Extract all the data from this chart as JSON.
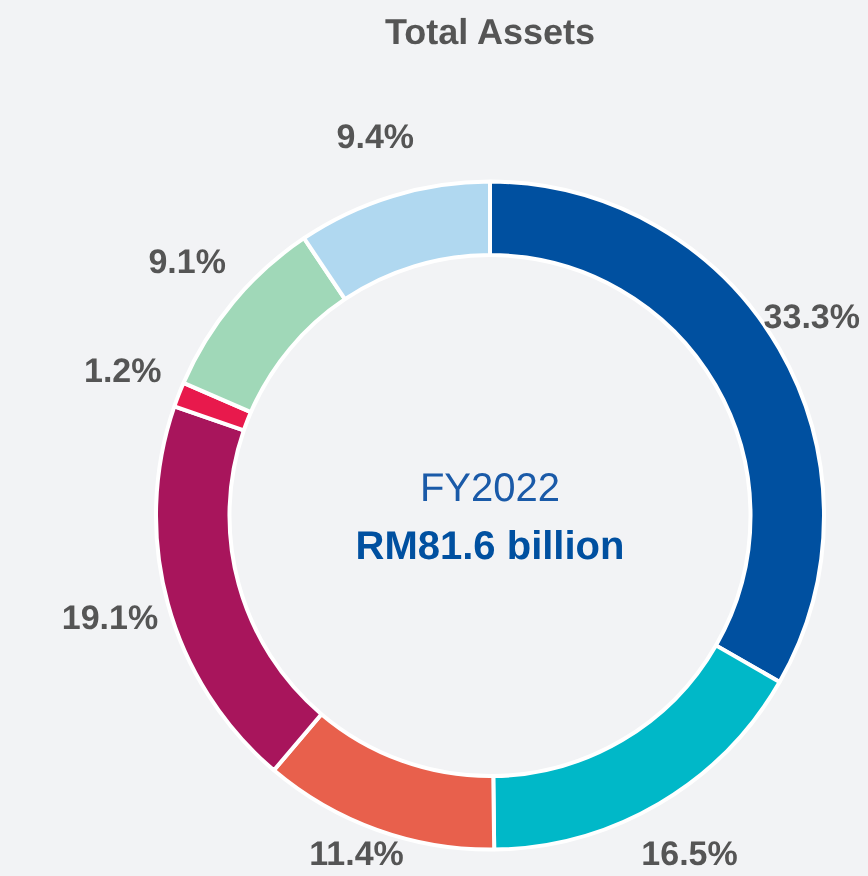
{
  "chart_data": {
    "type": "donut",
    "title": "Total Assets",
    "categories": [
      null,
      null,
      null,
      null,
      null,
      null,
      null
    ],
    "values": [
      33.3,
      16.5,
      11.4,
      19.1,
      1.2,
      9.1,
      9.4
    ],
    "value_labels": [
      "33.3%",
      "16.5%",
      "11.4%",
      "19.1%",
      "1.2%",
      "9.1%",
      "9.4%"
    ],
    "colors": [
      "#0050a0",
      "#00b8c8",
      "#e8604c",
      "#a8155c",
      "#e8194c",
      "#a0d8b8",
      "#b0d8f0"
    ],
    "annotations": [
      "FY2022",
      "RM81.6 billion"
    ],
    "legend": false
  }
}
